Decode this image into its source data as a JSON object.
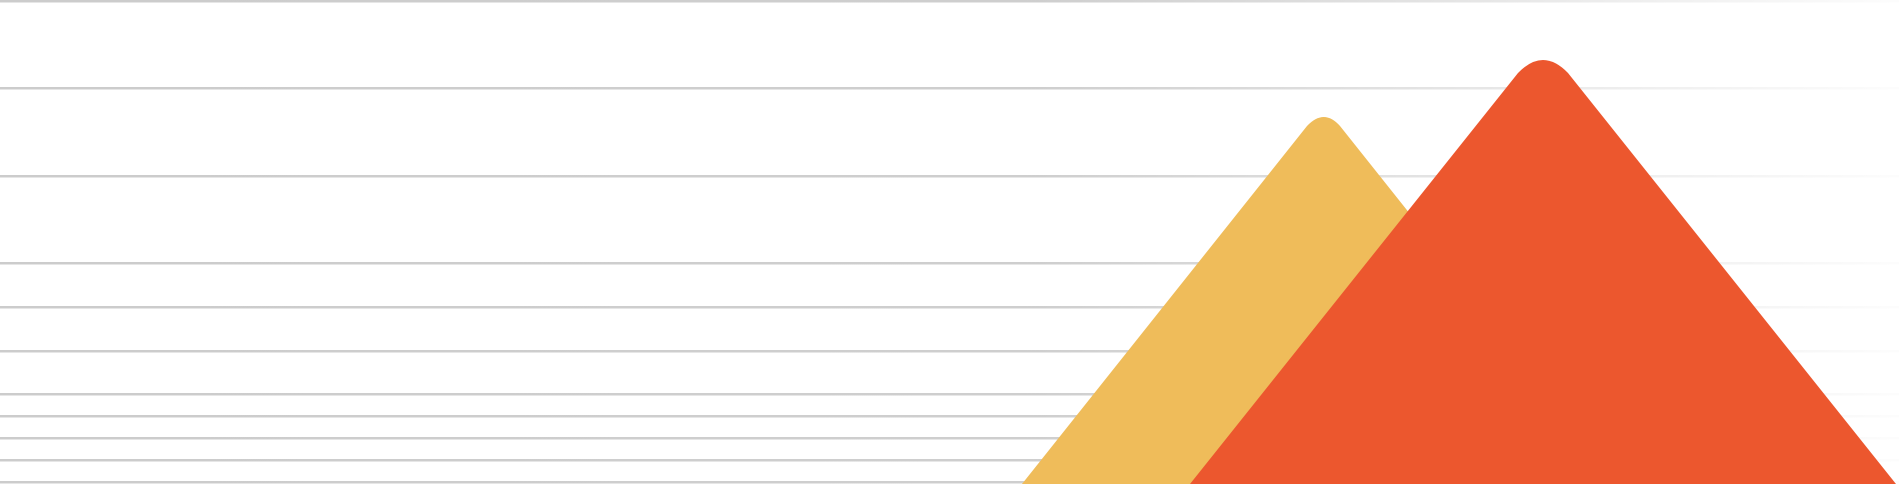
{
  "background_color": "#ffffff",
  "line_color": "#cccccc",
  "shapes": {
    "back_triangle": {
      "color": "#efbc5a"
    },
    "front_triangle": {
      "color": "#ec572e"
    }
  }
}
